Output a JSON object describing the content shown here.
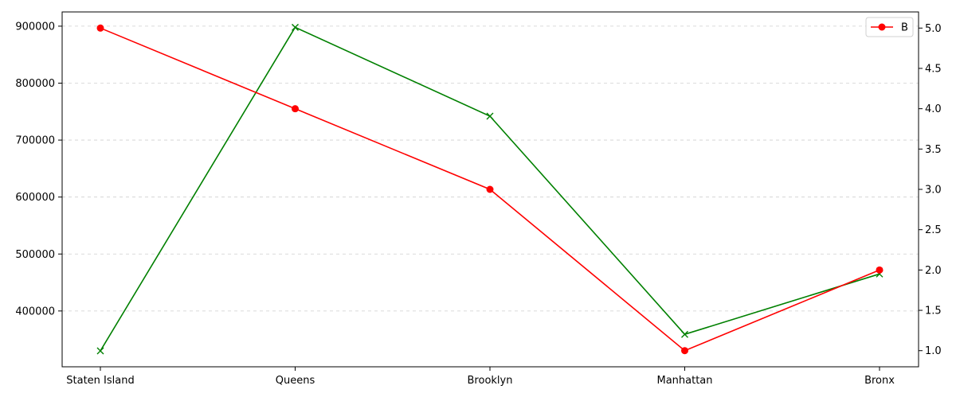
{
  "chart_data": {
    "type": "line",
    "categories": [
      "Staten Island",
      "Queens",
      "Brooklyn",
      "Manhattan",
      "Bronx"
    ],
    "left_axis": {
      "ticks": [
        400000,
        500000,
        600000,
        700000,
        800000,
        900000
      ],
      "tick_labels": [
        "400000",
        "500000",
        "600000",
        "700000",
        "800000",
        "900000"
      ],
      "range": [
        302000,
        925000
      ]
    },
    "right_axis": {
      "ticks": [
        1.0,
        1.5,
        2.0,
        2.5,
        3.0,
        3.5,
        4.0,
        4.5,
        5.0
      ],
      "tick_labels": [
        "1.0",
        "1.5",
        "2.0",
        "2.5",
        "3.0",
        "3.5",
        "4.0",
        "4.5",
        "5.0"
      ],
      "range": [
        0.8,
        5.2
      ]
    },
    "series": [
      {
        "axis": "left",
        "color": "#008000",
        "marker": "x",
        "values": [
          330000,
          898000,
          742000,
          359000,
          465000
        ]
      },
      {
        "name": "B",
        "axis": "right",
        "color": "#ff0000",
        "marker": "circle",
        "values": [
          5.0,
          4.0,
          3.0,
          1.0,
          2.0
        ]
      }
    ],
    "grid": true,
    "legend": {
      "position": "top-right",
      "entries": [
        "B"
      ]
    }
  }
}
